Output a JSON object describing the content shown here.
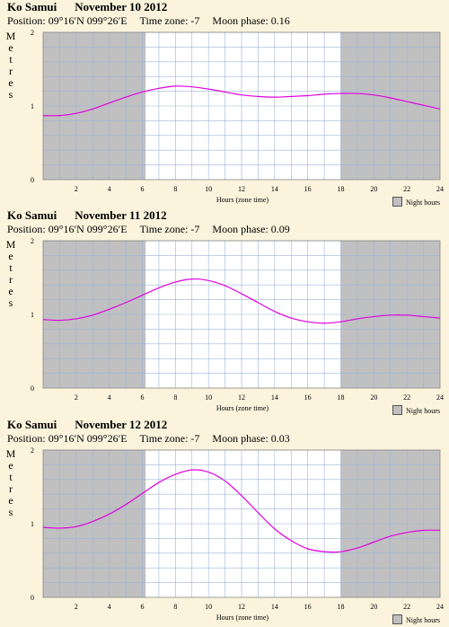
{
  "chart_data": [
    {
      "type": "line",
      "location": "Ko Samui",
      "date": "November 10 2012",
      "position_label": "Position:",
      "position_value": "09°16′N 099°26′E",
      "timezone_label": "Time zone:",
      "timezone_value": "-7",
      "moon_label": "Moon phase:",
      "moon_value": "0.16",
      "ylabel": "Metres",
      "xlabel": "Hours (zone time)",
      "legend": "Night hours",
      "xlim": [
        0,
        24
      ],
      "ylim": [
        0,
        2
      ],
      "x_ticks": [
        "2",
        "4",
        "6",
        "8",
        "10",
        "12",
        "14",
        "16",
        "18",
        "20",
        "22",
        "24"
      ],
      "y_ticks": [
        "0",
        "1",
        "2"
      ],
      "night_before": 6.2,
      "night_after": 18.0,
      "x": [
        0,
        1,
        2,
        3,
        4,
        5,
        6,
        7,
        8,
        9,
        10,
        11,
        12,
        13,
        14,
        15,
        16,
        17,
        18,
        19,
        20,
        21,
        22,
        23,
        24
      ],
      "y": [
        0.87,
        0.87,
        0.9,
        0.96,
        1.04,
        1.12,
        1.19,
        1.24,
        1.27,
        1.26,
        1.23,
        1.19,
        1.15,
        1.13,
        1.12,
        1.13,
        1.14,
        1.16,
        1.17,
        1.17,
        1.15,
        1.11,
        1.06,
        1.01,
        0.96
      ]
    },
    {
      "type": "line",
      "location": "Ko Samui",
      "date": "November 11 2012",
      "position_label": "Position:",
      "position_value": "09°16′N 099°26′E",
      "timezone_label": "Time zone:",
      "timezone_value": "-7",
      "moon_label": "Moon phase:",
      "moon_value": "0.09",
      "ylabel": "Metres",
      "xlabel": "Hours (zone time)",
      "legend": "Night hours",
      "xlim": [
        0,
        24
      ],
      "ylim": [
        0,
        2
      ],
      "x_ticks": [
        "2",
        "4",
        "6",
        "8",
        "10",
        "12",
        "14",
        "16",
        "18",
        "20",
        "22",
        "24"
      ],
      "y_ticks": [
        "0",
        "1",
        "2"
      ],
      "night_before": 6.2,
      "night_after": 18.0,
      "x": [
        0,
        1,
        2,
        3,
        4,
        5,
        6,
        7,
        8,
        9,
        10,
        11,
        12,
        13,
        14,
        15,
        16,
        17,
        18,
        19,
        20,
        21,
        22,
        23,
        24
      ],
      "y": [
        0.93,
        0.92,
        0.94,
        0.99,
        1.07,
        1.16,
        1.26,
        1.36,
        1.44,
        1.48,
        1.46,
        1.39,
        1.28,
        1.16,
        1.04,
        0.95,
        0.9,
        0.88,
        0.9,
        0.94,
        0.97,
        0.99,
        0.99,
        0.97,
        0.95
      ]
    },
    {
      "type": "line",
      "location": "Ko Samui",
      "date": "November 12 2012",
      "position_label": "Position:",
      "position_value": "09°16′N 099°26′E",
      "timezone_label": "Time zone:",
      "timezone_value": "-7",
      "moon_label": "Moon phase:",
      "moon_value": "0.03",
      "ylabel": "Metres",
      "xlabel": "Hours (zone time)",
      "legend": "Night hours",
      "xlim": [
        0,
        24
      ],
      "ylim": [
        0,
        2
      ],
      "x_ticks": [
        "2",
        "4",
        "6",
        "8",
        "10",
        "12",
        "14",
        "16",
        "18",
        "20",
        "22",
        "24"
      ],
      "y_ticks": [
        "0",
        "1",
        "2"
      ],
      "night_before": 6.2,
      "night_after": 18.0,
      "x": [
        0,
        1,
        2,
        3,
        4,
        5,
        6,
        7,
        8,
        9,
        10,
        11,
        12,
        13,
        14,
        15,
        16,
        17,
        18,
        19,
        20,
        21,
        22,
        23,
        24
      ],
      "y": [
        0.95,
        0.94,
        0.96,
        1.03,
        1.13,
        1.26,
        1.41,
        1.56,
        1.67,
        1.73,
        1.7,
        1.58,
        1.38,
        1.15,
        0.93,
        0.77,
        0.66,
        0.62,
        0.62,
        0.67,
        0.75,
        0.83,
        0.88,
        0.91,
        0.91
      ]
    }
  ],
  "colors": {
    "background": "#fbf3dc",
    "night": "#c0c0c0",
    "day": "#ffffff",
    "grid": "#9db4d8",
    "curve": "#e000e0"
  }
}
